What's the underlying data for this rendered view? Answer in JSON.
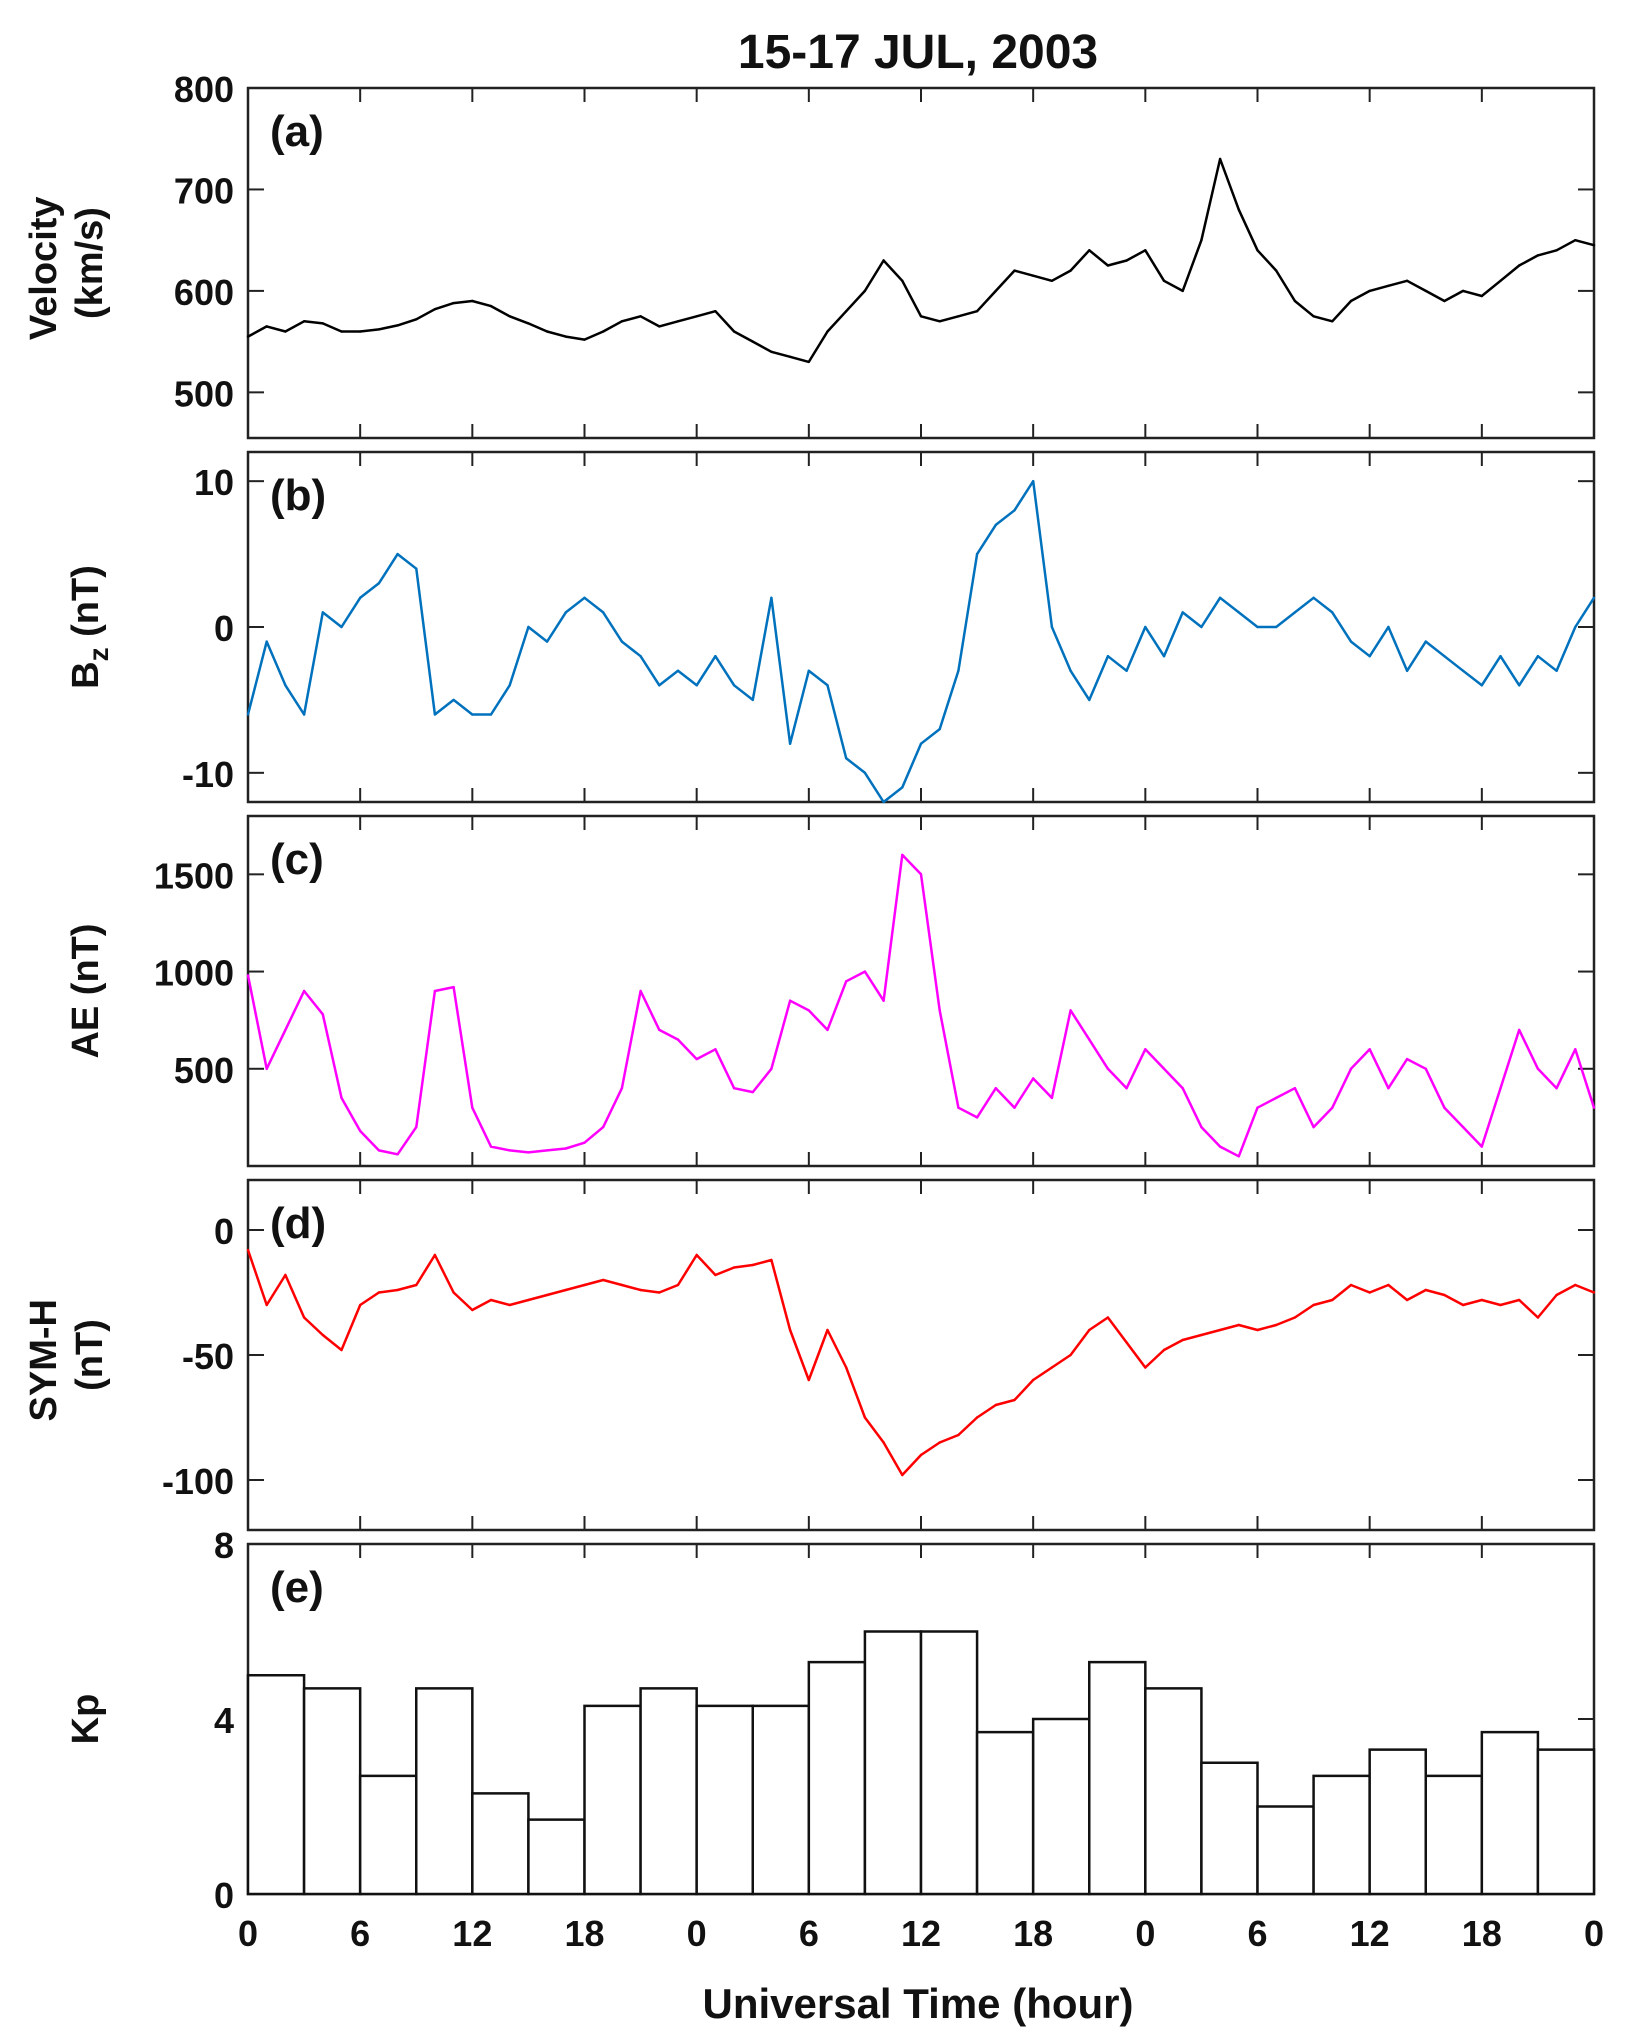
{
  "chart_data": {
    "title": "15-17 JUL, 2003",
    "xlabel": "Universal Time (hour)",
    "x_unit": "hours since 00 UT 15 Jul 2003",
    "xlim": [
      0,
      72
    ],
    "xticks": [
      0,
      6,
      12,
      18,
      24,
      30,
      36,
      42,
      48,
      54,
      60,
      66,
      72
    ],
    "xtick_labels": [
      "0",
      "6",
      "12",
      "18",
      "0",
      "6",
      "12",
      "18",
      "0",
      "6",
      "12",
      "18",
      "0"
    ],
    "panels": [
      {
        "key": "velocity",
        "type": "line",
        "tag": "(a)",
        "ylabel_lines": [
          "Velocity",
          "(km/s)"
        ],
        "ylim": [
          455,
          800
        ],
        "yticks": [
          500,
          600,
          700,
          800
        ],
        "ytick_labels": [
          "500",
          "600",
          "700",
          "800"
        ],
        "color": "#000000",
        "series": [
          {
            "name": "Velocity",
            "x": [
              0,
              1,
              2,
              3,
              4,
              5,
              6,
              7,
              8,
              9,
              10,
              11,
              12,
              13,
              14,
              15,
              16,
              17,
              18,
              19,
              20,
              21,
              22,
              23,
              24,
              25,
              26,
              27,
              28,
              29,
              30,
              31,
              32,
              33,
              34,
              35,
              36,
              37,
              38,
              39,
              40,
              41,
              42,
              43,
              44,
              45,
              46,
              47,
              48,
              49,
              50,
              51,
              52,
              53,
              54,
              55,
              56,
              57,
              58,
              59,
              60,
              61,
              62,
              63,
              64,
              65,
              66,
              67,
              68,
              69,
              70,
              71,
              72
            ],
            "y": [
              555,
              565,
              560,
              570,
              568,
              560,
              560,
              562,
              566,
              572,
              582,
              588,
              590,
              585,
              575,
              568,
              560,
              555,
              552,
              560,
              570,
              575,
              565,
              570,
              575,
              580,
              560,
              550,
              540,
              535,
              530,
              560,
              580,
              600,
              630,
              610,
              575,
              570,
              575,
              580,
              600,
              620,
              615,
              610,
              620,
              640,
              625,
              630,
              640,
              610,
              600,
              650,
              730,
              680,
              640,
              620,
              590,
              575,
              570,
              590,
              600,
              605,
              610,
              600,
              590,
              600,
              595,
              610,
              625,
              635,
              640,
              650,
              645
            ]
          }
        ]
      },
      {
        "key": "bz",
        "type": "line",
        "tag": "(b)",
        "ylabel_lines": [
          "B",
          "z",
          " (nT)"
        ],
        "ylim": [
          -12,
          12
        ],
        "yticks": [
          -10,
          0,
          10
        ],
        "ytick_labels": [
          "-10",
          "0",
          "10"
        ],
        "color": "#0072BD",
        "series": [
          {
            "name": "Bz",
            "x": [
              0,
              1,
              2,
              3,
              4,
              5,
              6,
              7,
              8,
              9,
              10,
              11,
              12,
              13,
              14,
              15,
              16,
              17,
              18,
              19,
              20,
              21,
              22,
              23,
              24,
              25,
              26,
              27,
              28,
              29,
              30,
              31,
              32,
              33,
              34,
              35,
              36,
              37,
              38,
              39,
              40,
              41,
              42,
              43,
              44,
              45,
              46,
              47,
              48,
              49,
              50,
              51,
              52,
              53,
              54,
              55,
              56,
              57,
              58,
              59,
              60,
              61,
              62,
              63,
              64,
              65,
              66,
              67,
              68,
              69,
              70,
              71,
              72
            ],
            "y": [
              -6,
              -1,
              -4,
              -6,
              1,
              0,
              2,
              3,
              5,
              4,
              -6,
              -5,
              -6,
              -6,
              -4,
              0,
              -1,
              1,
              2,
              1,
              -1,
              -2,
              -4,
              -3,
              -4,
              -2,
              -4,
              -5,
              2,
              -8,
              -3,
              -4,
              -9,
              -10,
              -12,
              -11,
              -8,
              -7,
              -3,
              5,
              7,
              8,
              10,
              0,
              -3,
              -5,
              -2,
              -3,
              0,
              -2,
              1,
              0,
              2,
              1,
              0,
              0,
              1,
              2,
              1,
              -1,
              -2,
              0,
              -3,
              -1,
              -2,
              -3,
              -4,
              -2,
              -4,
              -2,
              -3,
              0,
              2
            ]
          }
        ]
      },
      {
        "key": "ae",
        "type": "line",
        "tag": "(c)",
        "ylabel_lines": [
          "AE (nT)"
        ],
        "ylim": [
          0,
          1800
        ],
        "yticks": [
          500,
          1000,
          1500
        ],
        "ytick_labels": [
          "500",
          "1000",
          "1500"
        ],
        "color": "#FF00FF",
        "series": [
          {
            "name": "AE",
            "x": [
              0,
              1,
              2,
              3,
              4,
              5,
              6,
              7,
              8,
              9,
              10,
              11,
              12,
              13,
              14,
              15,
              16,
              17,
              18,
              19,
              20,
              21,
              22,
              23,
              24,
              25,
              26,
              27,
              28,
              29,
              30,
              31,
              32,
              33,
              34,
              35,
              36,
              37,
              38,
              39,
              40,
              41,
              42,
              43,
              44,
              45,
              46,
              47,
              48,
              49,
              50,
              51,
              52,
              53,
              54,
              55,
              56,
              57,
              58,
              59,
              60,
              61,
              62,
              63,
              64,
              65,
              66,
              67,
              68,
              69,
              70,
              71,
              72
            ],
            "y": [
              980,
              500,
              700,
              900,
              780,
              350,
              180,
              80,
              60,
              200,
              900,
              920,
              300,
              100,
              80,
              70,
              80,
              90,
              120,
              200,
              400,
              900,
              700,
              650,
              550,
              600,
              400,
              380,
              500,
              850,
              800,
              700,
              950,
              1000,
              850,
              1600,
              1500,
              800,
              300,
              250,
              400,
              300,
              450,
              350,
              800,
              650,
              500,
              400,
              600,
              500,
              400,
              200,
              100,
              50,
              300,
              350,
              400,
              200,
              300,
              500,
              600,
              400,
              550,
              500,
              300,
              200,
              100,
              400,
              700,
              500,
              400,
              600,
              300
            ]
          }
        ]
      },
      {
        "key": "symh",
        "type": "line",
        "tag": "(d)",
        "ylabel_lines": [
          "SYM-H",
          "(nT)"
        ],
        "ylim": [
          -120,
          20
        ],
        "yticks": [
          -100,
          -50,
          0
        ],
        "ytick_labels": [
          "-100",
          "-50",
          "0"
        ],
        "color": "#FF0000",
        "series": [
          {
            "name": "SYM-H",
            "x": [
              0,
              1,
              2,
              3,
              4,
              5,
              6,
              7,
              8,
              9,
              10,
              11,
              12,
              13,
              14,
              15,
              16,
              17,
              18,
              19,
              20,
              21,
              22,
              23,
              24,
              25,
              26,
              27,
              28,
              29,
              30,
              31,
              32,
              33,
              34,
              35,
              36,
              37,
              38,
              39,
              40,
              41,
              42,
              43,
              44,
              45,
              46,
              47,
              48,
              49,
              50,
              51,
              52,
              53,
              54,
              55,
              56,
              57,
              58,
              59,
              60,
              61,
              62,
              63,
              64,
              65,
              66,
              67,
              68,
              69,
              70,
              71,
              72
            ],
            "y": [
              -8,
              -30,
              -18,
              -35,
              -42,
              -48,
              -30,
              -25,
              -24,
              -22,
              -10,
              -25,
              -32,
              -28,
              -30,
              -28,
              -26,
              -24,
              -22,
              -20,
              -22,
              -24,
              -25,
              -22,
              -10,
              -18,
              -15,
              -14,
              -12,
              -40,
              -60,
              -40,
              -55,
              -75,
              -85,
              -98,
              -90,
              -85,
              -82,
              -75,
              -70,
              -68,
              -60,
              -55,
              -50,
              -40,
              -35,
              -45,
              -55,
              -48,
              -44,
              -42,
              -40,
              -38,
              -40,
              -38,
              -35,
              -30,
              -28,
              -22,
              -25,
              -22,
              -28,
              -24,
              -26,
              -30,
              -28,
              -30,
              -28,
              -35,
              -26,
              -22,
              -25
            ]
          }
        ]
      },
      {
        "key": "kp",
        "type": "bar",
        "tag": "(e)",
        "ylabel_lines": [
          "Kp"
        ],
        "ylim": [
          0,
          8
        ],
        "yticks": [
          0,
          4,
          8
        ],
        "ytick_labels": [
          "0",
          "4",
          "8"
        ],
        "color": "#000000",
        "bar_width_hours": 3,
        "categories": [
          "0-3",
          "3-6",
          "6-9",
          "9-12",
          "12-15",
          "15-18",
          "18-21",
          "21-24",
          "24-27",
          "27-30",
          "30-33",
          "33-36",
          "36-39",
          "39-42",
          "42-45",
          "45-48",
          "48-51",
          "51-54",
          "54-57",
          "57-60",
          "60-63",
          "63-66",
          "66-69",
          "69-72"
        ],
        "values": [
          5.0,
          4.7,
          2.7,
          4.7,
          2.3,
          1.7,
          4.3,
          4.7,
          4.3,
          4.3,
          5.3,
          6.0,
          6.0,
          3.7,
          4.0,
          5.3,
          4.7,
          3.0,
          2.0,
          2.7,
          3.3,
          2.7,
          3.7,
          3.3
        ]
      }
    ]
  }
}
